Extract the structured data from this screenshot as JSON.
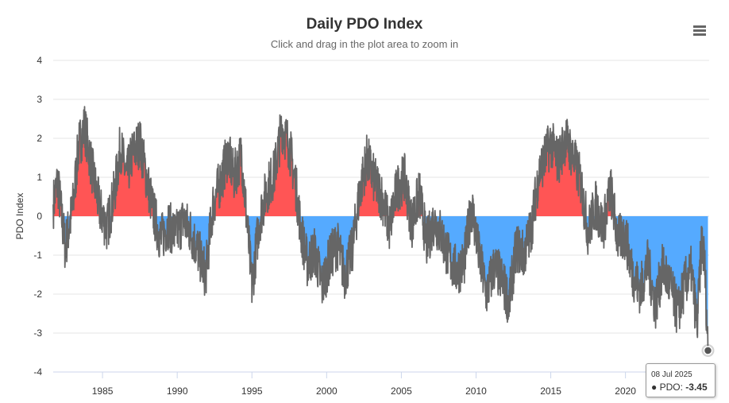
{
  "page": {
    "menu_icon": "hamburger-menu-icon"
  },
  "tooltip": {
    "date": "08 Jul 2025",
    "series_name": "PDO",
    "value_text": "-3.45"
  },
  "colors": {
    "positive_fill": "#ff5555",
    "negative_fill": "#55aaff",
    "line": "#666666",
    "gridline": "#e6e6e6",
    "marker": "#555555"
  },
  "chart_data": {
    "type": "area",
    "title": "Daily PDO Index",
    "subtitle": "Click and drag in the plot area to zoom in",
    "xlabel": "",
    "ylabel": "PDO Index",
    "ylim": [
      -4,
      4
    ],
    "xlim": [
      1981.7,
      2025.6
    ],
    "yticks": [
      4,
      3,
      2,
      1,
      0,
      -1,
      -2,
      -3,
      -4
    ],
    "xticks": [
      1985,
      1990,
      1995,
      2000,
      2005,
      2010,
      2015,
      2020
    ],
    "grid": true,
    "fill_rule": "positive values filled red, negative values filled blue relative to 0",
    "series": [
      {
        "name": "PDO",
        "x": [
          1981.7,
          1982.0,
          1982.5,
          1983.0,
          1983.4,
          1983.8,
          1984.3,
          1984.8,
          1985.3,
          1985.8,
          1986.2,
          1986.6,
          1987.0,
          1987.5,
          1988.0,
          1988.4,
          1988.9,
          1989.4,
          1989.9,
          1990.4,
          1990.9,
          1991.4,
          1991.9,
          1992.4,
          1992.9,
          1993.4,
          1993.8,
          1994.3,
          1994.7,
          1995.0,
          1995.5,
          1996.0,
          1996.5,
          1997.0,
          1997.5,
          1997.9,
          1998.3,
          1998.7,
          1999.2,
          1999.7,
          2000.2,
          2000.7,
          2001.2,
          2001.7,
          2002.2,
          2002.7,
          2003.2,
          2003.7,
          2004.2,
          2004.7,
          2005.2,
          2005.7,
          2006.2,
          2006.7,
          2007.2,
          2007.7,
          2008.2,
          2008.7,
          2009.2,
          2009.7,
          2010.2,
          2010.7,
          2011.2,
          2011.7,
          2012.2,
          2012.7,
          2013.2,
          2013.7,
          2014.2,
          2014.6,
          2015.0,
          2015.5,
          2016.0,
          2016.5,
          2017.0,
          2017.5,
          2018.0,
          2018.5,
          2019.0,
          2019.5,
          2020.0,
          2020.5,
          2021.0,
          2021.5,
          2022.0,
          2022.5,
          2023.0,
          2023.5,
          2024.0,
          2024.4,
          2024.8,
          2025.1,
          2025.3,
          2025.52
        ],
        "y": [
          0.3,
          0.9,
          -0.8,
          0.2,
          1.8,
          2.3,
          1.2,
          0.2,
          -0.3,
          0.6,
          1.8,
          1.0,
          1.6,
          1.9,
          0.9,
          0.1,
          -0.6,
          -0.2,
          -0.5,
          -0.1,
          -0.4,
          -0.9,
          -1.5,
          0.3,
          0.9,
          1.6,
          1.0,
          1.6,
          -0.3,
          -1.8,
          -0.1,
          0.7,
          1.1,
          2.3,
          1.8,
          0.9,
          -0.4,
          -1.2,
          -0.9,
          -1.8,
          -1.1,
          -0.7,
          -1.5,
          -0.9,
          0.6,
          1.5,
          0.9,
          0.5,
          -0.3,
          0.7,
          1.0,
          -0.2,
          0.6,
          -0.7,
          -0.1,
          -0.5,
          -1.1,
          -1.4,
          -1.2,
          0.3,
          -1.0,
          -2.0,
          -1.3,
          -1.6,
          -2.2,
          -0.8,
          -1.0,
          -0.3,
          1.1,
          1.5,
          1.9,
          1.4,
          2.0,
          1.5,
          0.9,
          -0.4,
          0.3,
          -0.3,
          0.7,
          -0.6,
          -0.5,
          -1.5,
          -1.9,
          -1.2,
          -2.3,
          -1.3,
          -1.8,
          -2.5,
          -1.7,
          -1.4,
          -2.8,
          -0.6,
          -1.2,
          -3.45
        ]
      }
    ]
  }
}
